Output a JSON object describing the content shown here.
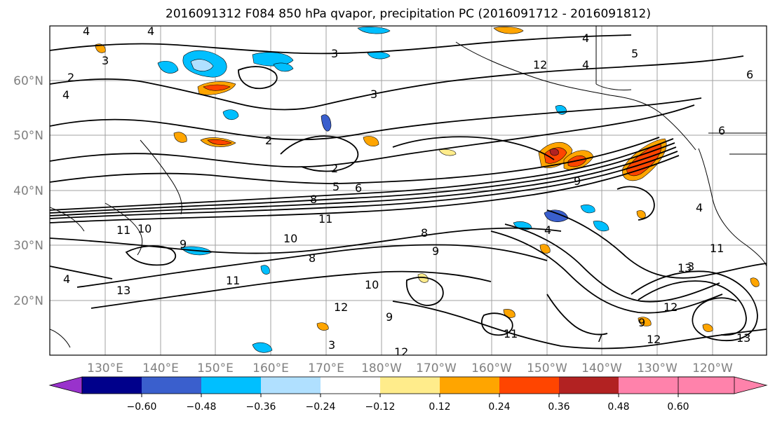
{
  "title": "2016091312 F084 850 hPa qvapor, precipitation PC (2016091712 - 2016091812)",
  "lat_labels": [
    "20°N",
    "30°N",
    "40°N",
    "50°N",
    "60°N"
  ],
  "lon_labels": [
    "130°E",
    "140°E",
    "150°E",
    "160°E",
    "170°E",
    "180°W",
    "170°W",
    "160°W",
    "150°W",
    "140°W",
    "130°W",
    "120°W"
  ],
  "colorbar": {
    "ticks": [
      "−0.60",
      "−0.48",
      "−0.36",
      "−0.24",
      "−0.12",
      "0.12",
      "0.24",
      "0.36",
      "0.48",
      "0.60"
    ],
    "colors": [
      "#9932cc",
      "#00008b",
      "#3a5fcd",
      "#00bfff",
      "#b0e0ff",
      "#ffffff",
      "#ffec8b",
      "#ffa500",
      "#ff4500",
      "#b22222",
      "#ff82ab"
    ]
  },
  "contour_labels": [
    {
      "text": "4"
    },
    {
      "text": "4"
    },
    {
      "text": "3"
    },
    {
      "text": "3"
    },
    {
      "text": "2"
    },
    {
      "text": "4"
    },
    {
      "text": "3"
    },
    {
      "text": "4"
    },
    {
      "text": "5"
    },
    {
      "text": "4"
    },
    {
      "text": "6"
    },
    {
      "text": "6"
    },
    {
      "text": "2"
    },
    {
      "text": "2"
    },
    {
      "text": "8"
    },
    {
      "text": "5"
    },
    {
      "text": "6"
    },
    {
      "text": "9"
    },
    {
      "text": "11"
    },
    {
      "text": "10"
    },
    {
      "text": "11"
    },
    {
      "text": "10"
    },
    {
      "text": "8"
    },
    {
      "text": "9"
    },
    {
      "text": "8"
    },
    {
      "text": "9"
    },
    {
      "text": "4"
    },
    {
      "text": "11"
    },
    {
      "text": "13"
    },
    {
      "text": "11"
    },
    {
      "text": "10"
    },
    {
      "text": "12"
    },
    {
      "text": "9"
    },
    {
      "text": "4"
    },
    {
      "text": "13"
    },
    {
      "text": "12"
    },
    {
      "text": "11"
    },
    {
      "text": "9"
    },
    {
      "text": "12"
    },
    {
      "text": "13"
    },
    {
      "text": "12"
    },
    {
      "text": "3"
    },
    {
      "text": "12"
    },
    {
      "text": "4"
    },
    {
      "text": "3"
    },
    {
      "text": "7"
    }
  ]
}
